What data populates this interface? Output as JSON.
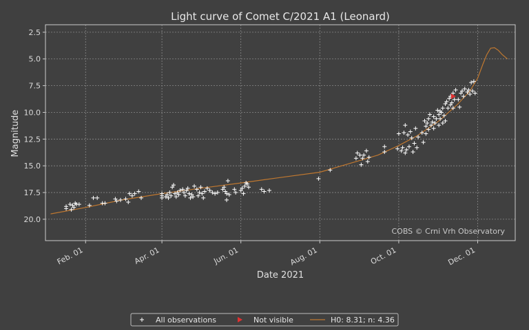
{
  "chart_data": {
    "type": "scatter",
    "title": "Light curve of Comet C/2021 A1 (Leonard)",
    "xlabel": "Date 2021",
    "ylabel": "Magnitude",
    "x_is_date": true,
    "xlim": [
      "2021-01-01",
      "2021-12-30"
    ],
    "ylim": [
      22.0,
      1.8
    ],
    "y_inverted": true,
    "yticks": [
      2.5,
      5.0,
      7.5,
      10.0,
      12.5,
      15.0,
      17.5,
      20.0
    ],
    "ytick_labels": [
      "2.5",
      "5.0",
      "7.5",
      "10.0",
      "12.5",
      "15.0",
      "17.5",
      "20.0"
    ],
    "xticks": [
      "2021-02-01",
      "2021-04-01",
      "2021-06-01",
      "2021-08-01",
      "2021-10-01",
      "2021-12-01"
    ],
    "xtick_labels": [
      "Feb. 01",
      "Apr. 01",
      "Jun. 01",
      "Aug. 01",
      "Oct. 01",
      "Dec. 01"
    ],
    "grid": true,
    "watermark": "COBS © Crni Vrh Observatory",
    "legend_position": "bottom-center",
    "colors": {
      "background": "#404040",
      "observations": "#ffffff",
      "not_visible": "#e03030",
      "model": "#c07830",
      "grid": "#8a8a8a",
      "frame": "#cccccc"
    },
    "series": [
      {
        "name": "All observations",
        "marker": "plus",
        "points": [
          [
            "2021-01-17",
            19.0
          ],
          [
            "2021-01-17",
            18.8
          ],
          [
            "2021-01-20",
            18.6
          ],
          [
            "2021-01-21",
            19.1
          ],
          [
            "2021-01-22",
            18.7
          ],
          [
            "2021-01-23",
            18.9
          ],
          [
            "2021-01-24",
            18.5
          ],
          [
            "2021-01-25",
            18.6
          ],
          [
            "2021-01-27",
            18.6
          ],
          [
            "2021-02-04",
            18.7
          ],
          [
            "2021-02-07",
            18.0
          ],
          [
            "2021-02-10",
            18.0
          ],
          [
            "2021-02-14",
            18.5
          ],
          [
            "2021-02-16",
            18.5
          ],
          [
            "2021-02-24",
            18.1
          ],
          [
            "2021-02-25",
            18.3
          ],
          [
            "2021-02-28",
            18.2
          ],
          [
            "2021-03-04",
            18.1
          ],
          [
            "2021-03-06",
            18.4
          ],
          [
            "2021-03-07",
            17.6
          ],
          [
            "2021-03-09",
            17.8
          ],
          [
            "2021-03-11",
            17.6
          ],
          [
            "2021-03-14",
            17.4
          ],
          [
            "2021-03-16",
            18.0
          ],
          [
            "2021-04-01",
            17.8
          ],
          [
            "2021-04-01",
            17.6
          ],
          [
            "2021-04-01",
            18.0
          ],
          [
            "2021-04-04",
            17.9
          ],
          [
            "2021-04-05",
            17.7
          ],
          [
            "2021-04-06",
            18.0
          ],
          [
            "2021-04-07",
            17.5
          ],
          [
            "2021-04-08",
            17.8
          ],
          [
            "2021-04-09",
            17.0
          ],
          [
            "2021-04-10",
            16.8
          ],
          [
            "2021-04-11",
            17.6
          ],
          [
            "2021-04-12",
            17.9
          ],
          [
            "2021-04-13",
            17.5
          ],
          [
            "2021-04-14",
            17.7
          ],
          [
            "2021-04-15",
            17.3
          ],
          [
            "2021-04-17",
            17.2
          ],
          [
            "2021-04-18",
            17.5
          ],
          [
            "2021-04-19",
            17.8
          ],
          [
            "2021-04-20",
            17.3
          ],
          [
            "2021-04-21",
            17.1
          ],
          [
            "2021-04-22",
            17.6
          ],
          [
            "2021-04-23",
            18.0
          ],
          [
            "2021-04-24",
            17.7
          ],
          [
            "2021-04-25",
            17.9
          ],
          [
            "2021-04-26",
            16.9
          ],
          [
            "2021-04-28",
            17.2
          ],
          [
            "2021-04-29",
            17.8
          ],
          [
            "2021-04-30",
            17.5
          ],
          [
            "2021-05-01",
            17.0
          ],
          [
            "2021-05-02",
            17.6
          ],
          [
            "2021-05-03",
            18.0
          ],
          [
            "2021-05-04",
            17.4
          ],
          [
            "2021-05-06",
            17.1
          ],
          [
            "2021-05-08",
            17.3
          ],
          [
            "2021-05-10",
            17.5
          ],
          [
            "2021-05-12",
            17.6
          ],
          [
            "2021-05-14",
            17.5
          ],
          [
            "2021-05-18",
            17.2
          ],
          [
            "2021-05-19",
            17.0
          ],
          [
            "2021-05-20",
            17.4
          ],
          [
            "2021-05-21",
            17.6
          ],
          [
            "2021-05-21",
            18.2
          ],
          [
            "2021-05-22",
            16.4
          ],
          [
            "2021-05-23",
            17.7
          ],
          [
            "2021-05-27",
            17.2
          ],
          [
            "2021-05-28",
            17.5
          ],
          [
            "2021-06-01",
            17.3
          ],
          [
            "2021-06-02",
            17.1
          ],
          [
            "2021-06-03",
            17.6
          ],
          [
            "2021-06-04",
            16.9
          ],
          [
            "2021-06-05",
            16.6
          ],
          [
            "2021-06-06",
            16.7
          ],
          [
            "2021-06-07",
            17.0
          ],
          [
            "2021-06-17",
            17.2
          ],
          [
            "2021-06-19",
            17.4
          ],
          [
            "2021-06-23",
            17.3
          ],
          [
            "2021-07-31",
            16.2
          ],
          [
            "2021-08-09",
            15.4
          ],
          [
            "2021-08-29",
            14.3
          ],
          [
            "2021-08-30",
            13.8
          ],
          [
            "2021-09-01",
            14.0
          ],
          [
            "2021-09-02",
            14.9
          ],
          [
            "2021-09-03",
            14.3
          ],
          [
            "2021-09-04",
            14.0
          ],
          [
            "2021-09-06",
            13.6
          ],
          [
            "2021-09-07",
            14.6
          ],
          [
            "2021-09-08",
            14.2
          ],
          [
            "2021-09-20",
            13.2
          ],
          [
            "2021-09-20",
            13.7
          ],
          [
            "2021-09-30",
            13.4
          ],
          [
            "2021-10-01",
            12.0
          ],
          [
            "2021-10-03",
            13.6
          ],
          [
            "2021-10-04",
            13.3
          ],
          [
            "2021-10-05",
            11.9
          ],
          [
            "2021-10-06",
            13.8
          ],
          [
            "2021-10-06",
            11.2
          ],
          [
            "2021-10-07",
            13.5
          ],
          [
            "2021-10-08",
            12.1
          ],
          [
            "2021-10-09",
            13.2
          ],
          [
            "2021-10-10",
            11.8
          ],
          [
            "2021-10-11",
            12.4
          ],
          [
            "2021-10-12",
            13.7
          ],
          [
            "2021-10-13",
            12.9
          ],
          [
            "2021-10-14",
            11.5
          ],
          [
            "2021-10-15",
            13.3
          ],
          [
            "2021-10-16",
            12.3
          ],
          [
            "2021-10-19",
            11.9
          ],
          [
            "2021-10-20",
            12.8
          ],
          [
            "2021-10-21",
            10.8
          ],
          [
            "2021-10-22",
            11.3
          ],
          [
            "2021-10-22",
            12.0
          ],
          [
            "2021-10-23",
            11.0
          ],
          [
            "2021-10-24",
            10.6
          ],
          [
            "2021-10-24",
            11.6
          ],
          [
            "2021-10-25",
            10.2
          ],
          [
            "2021-10-26",
            11.2
          ],
          [
            "2021-10-27",
            10.9
          ],
          [
            "2021-10-28",
            11.5
          ],
          [
            "2021-10-28",
            10.4
          ],
          [
            "2021-10-29",
            11.0
          ],
          [
            "2021-10-30",
            10.6
          ],
          [
            "2021-10-31",
            9.8
          ],
          [
            "2021-11-01",
            11.2
          ],
          [
            "2021-11-01",
            10.2
          ],
          [
            "2021-11-02",
            9.9
          ],
          [
            "2021-11-02",
            10.6
          ],
          [
            "2021-11-03",
            10.0
          ],
          [
            "2021-11-04",
            9.6
          ],
          [
            "2021-11-04",
            11.0
          ],
          [
            "2021-11-05",
            10.3
          ],
          [
            "2021-11-06",
            9.2
          ],
          [
            "2021-11-06",
            10.8
          ],
          [
            "2021-11-07",
            9.0
          ],
          [
            "2021-11-08",
            9.6
          ],
          [
            "2021-11-09",
            8.7
          ],
          [
            "2021-11-10",
            9.3
          ],
          [
            "2021-11-10",
            8.5
          ],
          [
            "2021-11-11",
            9.1
          ],
          [
            "2021-11-12",
            8.2
          ],
          [
            "2021-11-12",
            9.6
          ],
          [
            "2021-11-13",
            8.8
          ],
          [
            "2021-11-14",
            7.9
          ],
          [
            "2021-11-16",
            8.8
          ],
          [
            "2021-11-17",
            9.5
          ],
          [
            "2021-11-18",
            8.2
          ],
          [
            "2021-11-19",
            8.0
          ],
          [
            "2021-11-20",
            8.5
          ],
          [
            "2021-11-21",
            7.8
          ],
          [
            "2021-11-23",
            8.1
          ],
          [
            "2021-11-24",
            7.9
          ],
          [
            "2021-11-25",
            8.3
          ],
          [
            "2021-11-26",
            7.2
          ],
          [
            "2021-11-27",
            8.0
          ],
          [
            "2021-11-28",
            7.1
          ],
          [
            "2021-11-29",
            8.2
          ]
        ]
      },
      {
        "name": "Not visible",
        "marker": "triangle-right",
        "points": [
          [
            "2021-11-12",
            8.5
          ]
        ]
      },
      {
        "name": "H0: 8.31; n: 4.36",
        "type": "line",
        "points": [
          [
            "2021-01-05",
            19.5
          ],
          [
            "2021-02-01",
            18.9
          ],
          [
            "2021-03-01",
            18.2
          ],
          [
            "2021-04-01",
            17.6
          ],
          [
            "2021-05-01",
            17.1
          ],
          [
            "2021-06-01",
            16.6
          ],
          [
            "2021-07-01",
            16.1
          ],
          [
            "2021-08-01",
            15.6
          ],
          [
            "2021-09-01",
            14.5
          ],
          [
            "2021-09-15",
            14.0
          ],
          [
            "2021-10-01",
            13.1
          ],
          [
            "2021-10-15",
            12.2
          ],
          [
            "2021-11-01",
            10.8
          ],
          [
            "2021-11-15",
            9.3
          ],
          [
            "2021-11-25",
            8.0
          ],
          [
            "2021-12-01",
            6.8
          ],
          [
            "2021-12-05",
            5.5
          ],
          [
            "2021-12-08",
            4.6
          ],
          [
            "2021-12-11",
            4.0
          ],
          [
            "2021-12-14",
            3.95
          ],
          [
            "2021-12-17",
            4.2
          ],
          [
            "2021-12-20",
            4.6
          ],
          [
            "2021-12-24",
            5.0
          ]
        ]
      }
    ]
  }
}
